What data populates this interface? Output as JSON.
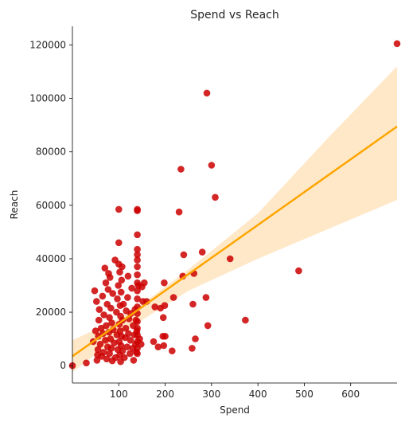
{
  "chart_data": {
    "type": "scatter",
    "title": "Spend vs Reach",
    "xlabel": "Spend",
    "ylabel": "Reach",
    "xlim": [
      0,
      700
    ],
    "ylim": [
      -6500,
      127000
    ],
    "x_ticks": [
      100,
      200,
      300,
      400,
      500,
      600
    ],
    "y_ticks": [
      0,
      20000,
      40000,
      60000,
      80000,
      100000,
      120000
    ],
    "grid": false,
    "legend": "none",
    "colors": {
      "points": "#cc0000",
      "regression_line": "#ffa500",
      "confidence_band": "#ffe8c8"
    },
    "series": [
      {
        "type": "scatter",
        "points": [
          {
            "x": 0,
            "y": 0
          },
          {
            "x": 30,
            "y": 1000
          },
          {
            "x": 45,
            "y": 9000
          },
          {
            "x": 48,
            "y": 28000
          },
          {
            "x": 50,
            "y": 13000
          },
          {
            "x": 52,
            "y": 24000
          },
          {
            "x": 53,
            "y": 2000
          },
          {
            "x": 54,
            "y": 4000
          },
          {
            "x": 55,
            "y": 6000
          },
          {
            "x": 56,
            "y": 11000
          },
          {
            "x": 57,
            "y": 17000
          },
          {
            "x": 58,
            "y": 21000
          },
          {
            "x": 60,
            "y": 8000
          },
          {
            "x": 62,
            "y": 14000
          },
          {
            "x": 63,
            "y": 3500
          },
          {
            "x": 65,
            "y": 26000
          },
          {
            "x": 66,
            "y": 12000
          },
          {
            "x": 67,
            "y": 5000
          },
          {
            "x": 68,
            "y": 19000
          },
          {
            "x": 70,
            "y": 36500
          },
          {
            "x": 71,
            "y": 9500
          },
          {
            "x": 72,
            "y": 31000
          },
          {
            "x": 73,
            "y": 15000
          },
          {
            "x": 74,
            "y": 2500
          },
          {
            "x": 75,
            "y": 23000
          },
          {
            "x": 76,
            "y": 7000
          },
          {
            "x": 77,
            "y": 28500
          },
          {
            "x": 78,
            "y": 34500
          },
          {
            "x": 79,
            "y": 12500
          },
          {
            "x": 80,
            "y": 18000
          },
          {
            "x": 80,
            "y": 4500
          },
          {
            "x": 81,
            "y": 33000
          },
          {
            "x": 82,
            "y": 10000
          },
          {
            "x": 83,
            "y": 21500
          },
          {
            "x": 84,
            "y": 6500
          },
          {
            "x": 85,
            "y": 16000
          },
          {
            "x": 86,
            "y": 1800
          },
          {
            "x": 87,
            "y": 27000
          },
          {
            "x": 88,
            "y": 13500
          },
          {
            "x": 90,
            "y": 8500
          },
          {
            "x": 92,
            "y": 39500
          },
          {
            "x": 93,
            "y": 3000
          },
          {
            "x": 95,
            "y": 20000
          },
          {
            "x": 96,
            "y": 11500
          },
          {
            "x": 97,
            "y": 25000
          },
          {
            "x": 98,
            "y": 6000
          },
          {
            "x": 99,
            "y": 30000
          },
          {
            "x": 100,
            "y": 58500
          },
          {
            "x": 100,
            "y": 46000
          },
          {
            "x": 100,
            "y": 38000
          },
          {
            "x": 101,
            "y": 15500
          },
          {
            "x": 101,
            "y": 9000
          },
          {
            "x": 102,
            "y": 35000
          },
          {
            "x": 102,
            "y": 4000
          },
          {
            "x": 103,
            "y": 22500
          },
          {
            "x": 103,
            "y": 13000
          },
          {
            "x": 104,
            "y": 18500
          },
          {
            "x": 104,
            "y": 1500
          },
          {
            "x": 105,
            "y": 27500
          },
          {
            "x": 105,
            "y": 7500
          },
          {
            "x": 106,
            "y": 32000
          },
          {
            "x": 106,
            "y": 11000
          },
          {
            "x": 107,
            "y": 37000
          },
          {
            "x": 108,
            "y": 5500
          },
          {
            "x": 108,
            "y": 17000
          },
          {
            "x": 110,
            "y": 23000
          },
          {
            "x": 112,
            "y": 3000
          },
          {
            "x": 114,
            "y": 10500
          },
          {
            "x": 115,
            "y": 14000
          },
          {
            "x": 116,
            "y": 20500
          },
          {
            "x": 118,
            "y": 7000
          },
          {
            "x": 119,
            "y": 25500
          },
          {
            "x": 120,
            "y": 33500
          },
          {
            "x": 121,
            "y": 12000
          },
          {
            "x": 122,
            "y": 17500
          },
          {
            "x": 124,
            "y": 4500
          },
          {
            "x": 125,
            "y": 9500
          },
          {
            "x": 126,
            "y": 19500
          },
          {
            "x": 128,
            "y": 29000
          },
          {
            "x": 130,
            "y": 6500
          },
          {
            "x": 131,
            "y": 15000
          },
          {
            "x": 132,
            "y": 2000
          },
          {
            "x": 134,
            "y": 11500
          },
          {
            "x": 135,
            "y": 21000
          },
          {
            "x": 136,
            "y": 8000
          },
          {
            "x": 137,
            "y": 17000
          },
          {
            "x": 138,
            "y": 5000
          },
          {
            "x": 139,
            "y": 13000
          },
          {
            "x": 140,
            "y": 58500
          },
          {
            "x": 140,
            "y": 58000
          },
          {
            "x": 140,
            "y": 49000
          },
          {
            "x": 140,
            "y": 43500
          },
          {
            "x": 140,
            "y": 41500
          },
          {
            "x": 140,
            "y": 39500
          },
          {
            "x": 140,
            "y": 37000
          },
          {
            "x": 140,
            "y": 34000
          },
          {
            "x": 140,
            "y": 31000
          },
          {
            "x": 140,
            "y": 28000
          },
          {
            "x": 140,
            "y": 25000
          },
          {
            "x": 140,
            "y": 22000
          },
          {
            "x": 140,
            "y": 19500
          },
          {
            "x": 140,
            "y": 16500
          },
          {
            "x": 140,
            "y": 14000
          },
          {
            "x": 140,
            "y": 11500
          },
          {
            "x": 140,
            "y": 9000
          },
          {
            "x": 140,
            "y": 6500
          },
          {
            "x": 140,
            "y": 4500
          },
          {
            "x": 142,
            "y": 30000
          },
          {
            "x": 145,
            "y": 10000
          },
          {
            "x": 148,
            "y": 8000
          },
          {
            "x": 150,
            "y": 29500
          },
          {
            "x": 152,
            "y": 24000
          },
          {
            "x": 155,
            "y": 31000
          },
          {
            "x": 160,
            "y": 24000
          },
          {
            "x": 175,
            "y": 9000
          },
          {
            "x": 178,
            "y": 22000
          },
          {
            "x": 185,
            "y": 7000
          },
          {
            "x": 190,
            "y": 21500
          },
          {
            "x": 195,
            "y": 11000
          },
          {
            "x": 196,
            "y": 18000
          },
          {
            "x": 197,
            "y": 7500
          },
          {
            "x": 198,
            "y": 31000
          },
          {
            "x": 199,
            "y": 22500
          },
          {
            "x": 200,
            "y": 11000
          },
          {
            "x": 215,
            "y": 5500
          },
          {
            "x": 218,
            "y": 25500
          },
          {
            "x": 230,
            "y": 57500
          },
          {
            "x": 234,
            "y": 73500
          },
          {
            "x": 238,
            "y": 33500
          },
          {
            "x": 240,
            "y": 41500
          },
          {
            "x": 258,
            "y": 6500
          },
          {
            "x": 260,
            "y": 23000
          },
          {
            "x": 262,
            "y": 34500
          },
          {
            "x": 265,
            "y": 10000
          },
          {
            "x": 280,
            "y": 42500
          },
          {
            "x": 288,
            "y": 25500
          },
          {
            "x": 290,
            "y": 102000
          },
          {
            "x": 292,
            "y": 15000
          },
          {
            "x": 300,
            "y": 75000
          },
          {
            "x": 308,
            "y": 63000
          },
          {
            "x": 340,
            "y": 40000
          },
          {
            "x": 373,
            "y": 17000
          },
          {
            "x": 488,
            "y": 35500
          },
          {
            "x": 700,
            "y": 120500
          }
        ]
      },
      {
        "type": "line",
        "x": [
          0,
          700
        ],
        "y": [
          3500,
          89500
        ]
      },
      {
        "type": "area",
        "x": [
          0,
          100,
          150,
          250,
          400,
          550,
          700
        ],
        "y_low": [
          -2500,
          11000,
          17000,
          28000,
          40000,
          51000,
          62000
        ],
        "y_high": [
          9500,
          17500,
          23000,
          36000,
          57000,
          85000,
          112000
        ]
      }
    ]
  }
}
